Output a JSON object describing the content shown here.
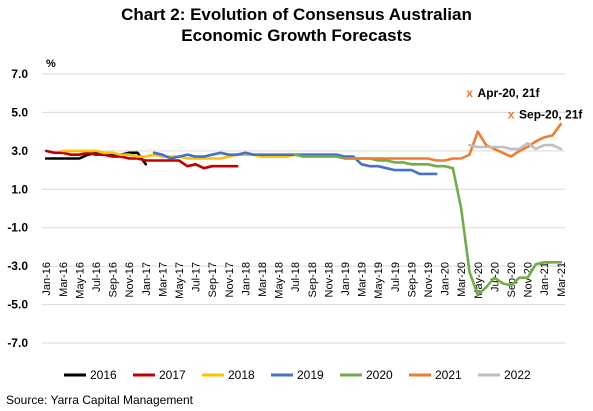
{
  "title_line1": "Chart 2: Evolution of Consensus Australian",
  "title_line2": "Economic Growth Forecasts",
  "source": "Source: Yarra Capital Management",
  "chart_data": {
    "type": "line",
    "ylabel": "%",
    "ylim": [
      -7.0,
      7.0
    ],
    "yticks": [
      "7.0",
      "5.0",
      "3.0",
      "1.0",
      "-1.0",
      "-3.0",
      "-5.0",
      "-7.0"
    ],
    "ytick_values": [
      7,
      5,
      3,
      1,
      -1,
      -3,
      -5,
      -7
    ],
    "x_categories": [
      "Jan-16",
      "Mar-16",
      "May-16",
      "Jul-16",
      "Sep-16",
      "Nov-16",
      "Jan-17",
      "Mar-17",
      "May-17",
      "Jul-17",
      "Sep-17",
      "Nov-17",
      "Jan-18",
      "Mar-18",
      "May-18",
      "Jul-18",
      "Sep-18",
      "Nov-18",
      "Jan-19",
      "Mar-19",
      "May-19",
      "Jul-19",
      "Sep-19",
      "Nov-19",
      "Jan-20",
      "Mar-20",
      "May-20",
      "Jul-20",
      "Sep-20",
      "Nov-20",
      "Jan-21",
      "Mar-21"
    ],
    "grid": "horizontal",
    "legend_position": "bottom",
    "annotations": [
      {
        "label": "Apr-20, 21f",
        "marker": "x",
        "color": "#ed7d31",
        "x": "Apr-20",
        "y": 6.0
      },
      {
        "label": "Sep-20, 21f",
        "marker": "x",
        "color": "#ed7d31",
        "x": "Sep-20",
        "y": 4.9
      }
    ],
    "series": [
      {
        "name": "2016",
        "color": "#000000",
        "points": [
          [
            "Jan-16",
            2.6
          ],
          [
            "Mar-16",
            2.6
          ],
          [
            "May-16",
            2.6
          ],
          [
            "Jun-16",
            2.8
          ],
          [
            "Jul-16",
            2.9
          ],
          [
            "Aug-16",
            2.9
          ],
          [
            "Sep-16",
            2.8
          ],
          [
            "Oct-16",
            2.8
          ],
          [
            "Nov-16",
            2.9
          ],
          [
            "Dec-16",
            2.9
          ],
          [
            "Jan-17",
            2.3
          ]
        ]
      },
      {
        "name": "2017",
        "color": "#c00000",
        "points": [
          [
            "Jan-16",
            3.0
          ],
          [
            "Feb-16",
            2.9
          ],
          [
            "Mar-16",
            2.9
          ],
          [
            "Apr-16",
            2.8
          ],
          [
            "May-16",
            2.8
          ],
          [
            "Jun-16",
            2.9
          ],
          [
            "Jul-16",
            2.8
          ],
          [
            "Aug-16",
            2.8
          ],
          [
            "Sep-16",
            2.7
          ],
          [
            "Oct-16",
            2.7
          ],
          [
            "Nov-16",
            2.6
          ],
          [
            "Dec-16",
            2.6
          ],
          [
            "Jan-17",
            2.5
          ],
          [
            "Feb-17",
            2.5
          ],
          [
            "Mar-17",
            2.5
          ],
          [
            "Apr-17",
            2.5
          ],
          [
            "May-17",
            2.5
          ],
          [
            "Jun-17",
            2.2
          ],
          [
            "Jul-17",
            2.3
          ],
          [
            "Aug-17",
            2.1
          ],
          [
            "Sep-17",
            2.2
          ],
          [
            "Oct-17",
            2.2
          ],
          [
            "Nov-17",
            2.2
          ],
          [
            "Dec-17",
            2.2
          ]
        ]
      },
      {
        "name": "2018",
        "color": "#ffc000",
        "points": [
          [
            "Mar-16",
            3.0
          ],
          [
            "Apr-16",
            3.0
          ],
          [
            "May-16",
            3.0
          ],
          [
            "Jun-16",
            3.0
          ],
          [
            "Jul-16",
            3.0
          ],
          [
            "Aug-16",
            2.9
          ],
          [
            "Sep-16",
            2.9
          ],
          [
            "Oct-16",
            2.8
          ],
          [
            "Nov-16",
            2.8
          ],
          [
            "Dec-16",
            2.7
          ],
          [
            "Jan-17",
            2.7
          ],
          [
            "Feb-17",
            2.8
          ],
          [
            "Mar-17",
            2.7
          ],
          [
            "Apr-17",
            2.7
          ],
          [
            "May-17",
            2.7
          ],
          [
            "Jun-17",
            2.6
          ],
          [
            "Jul-17",
            2.6
          ],
          [
            "Aug-17",
            2.6
          ],
          [
            "Sep-17",
            2.6
          ],
          [
            "Oct-17",
            2.6
          ],
          [
            "Nov-17",
            2.7
          ],
          [
            "Dec-17",
            2.8
          ],
          [
            "Jan-18",
            2.8
          ],
          [
            "Feb-18",
            2.8
          ],
          [
            "Mar-18",
            2.7
          ],
          [
            "Apr-18",
            2.7
          ],
          [
            "May-18",
            2.7
          ],
          [
            "Jun-18",
            2.7
          ],
          [
            "Jul-18",
            2.8
          ],
          [
            "Aug-18",
            2.8
          ],
          [
            "Sep-18",
            2.8
          ],
          [
            "Oct-18",
            2.8
          ],
          [
            "Nov-18",
            2.8
          ],
          [
            "Dec-18",
            2.8
          ]
        ]
      },
      {
        "name": "2019",
        "color": "#4472c4",
        "points": [
          [
            "Feb-17",
            2.9
          ],
          [
            "Mar-17",
            2.8
          ],
          [
            "Apr-17",
            2.6
          ],
          [
            "May-17",
            2.7
          ],
          [
            "Jun-17",
            2.8
          ],
          [
            "Jul-17",
            2.7
          ],
          [
            "Aug-17",
            2.7
          ],
          [
            "Sep-17",
            2.8
          ],
          [
            "Oct-17",
            2.9
          ],
          [
            "Nov-17",
            2.8
          ],
          [
            "Dec-17",
            2.8
          ],
          [
            "Jan-18",
            2.9
          ],
          [
            "Feb-18",
            2.8
          ],
          [
            "Mar-18",
            2.8
          ],
          [
            "Apr-18",
            2.8
          ],
          [
            "May-18",
            2.8
          ],
          [
            "Jun-18",
            2.8
          ],
          [
            "Jul-18",
            2.8
          ],
          [
            "Aug-18",
            2.8
          ],
          [
            "Sep-18",
            2.8
          ],
          [
            "Oct-18",
            2.8
          ],
          [
            "Nov-18",
            2.8
          ],
          [
            "Dec-18",
            2.8
          ],
          [
            "Jan-19",
            2.7
          ],
          [
            "Feb-19",
            2.7
          ],
          [
            "Mar-19",
            2.3
          ],
          [
            "Apr-19",
            2.2
          ],
          [
            "May-19",
            2.2
          ],
          [
            "Jun-19",
            2.1
          ],
          [
            "Jul-19",
            2.0
          ],
          [
            "Aug-19",
            2.0
          ],
          [
            "Sep-19",
            2.0
          ],
          [
            "Oct-19",
            1.8
          ],
          [
            "Nov-19",
            1.8
          ],
          [
            "Dec-19",
            1.8
          ]
        ]
      },
      {
        "name": "2020",
        "color": "#70ad47",
        "points": [
          [
            "Jul-18",
            2.8
          ],
          [
            "Aug-18",
            2.7
          ],
          [
            "Sep-18",
            2.7
          ],
          [
            "Oct-18",
            2.7
          ],
          [
            "Nov-18",
            2.7
          ],
          [
            "Dec-18",
            2.7
          ],
          [
            "Jan-19",
            2.6
          ],
          [
            "Feb-19",
            2.6
          ],
          [
            "Mar-19",
            2.6
          ],
          [
            "Apr-19",
            2.6
          ],
          [
            "May-19",
            2.5
          ],
          [
            "Jun-19",
            2.5
          ],
          [
            "Jul-19",
            2.4
          ],
          [
            "Aug-19",
            2.4
          ],
          [
            "Sep-19",
            2.3
          ],
          [
            "Oct-19",
            2.3
          ],
          [
            "Nov-19",
            2.3
          ],
          [
            "Dec-19",
            2.2
          ],
          [
            "Jan-20",
            2.2
          ],
          [
            "Feb-20",
            2.1
          ],
          [
            "Mar-20",
            0.0
          ],
          [
            "Apr-20",
            -3.3
          ],
          [
            "May-20",
            -4.5
          ],
          [
            "Jun-20",
            -4.1
          ],
          [
            "Jul-20",
            -3.6
          ],
          [
            "Aug-20",
            -3.9
          ],
          [
            "Sep-20",
            -4.0
          ],
          [
            "Oct-20",
            -3.6
          ],
          [
            "Nov-20",
            -3.6
          ],
          [
            "Dec-20",
            -2.9
          ],
          [
            "Jan-21",
            -2.8
          ],
          [
            "Feb-21",
            -2.8
          ],
          [
            "Mar-21",
            -2.8
          ]
        ]
      },
      {
        "name": "2021",
        "color": "#ed7d31",
        "points": [
          [
            "Jan-19",
            2.6
          ],
          [
            "Feb-19",
            2.6
          ],
          [
            "Mar-19",
            2.6
          ],
          [
            "Apr-19",
            2.6
          ],
          [
            "May-19",
            2.6
          ],
          [
            "Jun-19",
            2.6
          ],
          [
            "Jul-19",
            2.6
          ],
          [
            "Aug-19",
            2.6
          ],
          [
            "Sep-19",
            2.6
          ],
          [
            "Oct-19",
            2.6
          ],
          [
            "Nov-19",
            2.6
          ],
          [
            "Dec-19",
            2.5
          ],
          [
            "Jan-20",
            2.5
          ],
          [
            "Feb-20",
            2.6
          ],
          [
            "Mar-20",
            2.6
          ],
          [
            "Apr-20",
            2.8
          ],
          [
            "May-20",
            4.0
          ],
          [
            "Jun-20",
            3.3
          ],
          [
            "Jul-20",
            3.1
          ],
          [
            "Aug-20",
            2.9
          ],
          [
            "Sep-20",
            2.7
          ],
          [
            "Oct-20",
            3.0
          ],
          [
            "Nov-20",
            3.2
          ],
          [
            "Dec-20",
            3.5
          ],
          [
            "Jan-21",
            3.7
          ],
          [
            "Feb-21",
            3.8
          ],
          [
            "Mar-21",
            4.4
          ]
        ]
      },
      {
        "name": "2022",
        "color": "#bfbfbf",
        "points": [
          [
            "Apr-20",
            3.3
          ],
          [
            "May-20",
            3.2
          ],
          [
            "Jun-20",
            3.2
          ],
          [
            "Jul-20",
            3.2
          ],
          [
            "Aug-20",
            3.2
          ],
          [
            "Sep-20",
            3.1
          ],
          [
            "Oct-20",
            3.1
          ],
          [
            "Nov-20",
            3.4
          ],
          [
            "Dec-20",
            3.1
          ],
          [
            "Jan-21",
            3.3
          ],
          [
            "Feb-21",
            3.3
          ],
          [
            "Mar-21",
            3.1
          ]
        ]
      }
    ]
  }
}
